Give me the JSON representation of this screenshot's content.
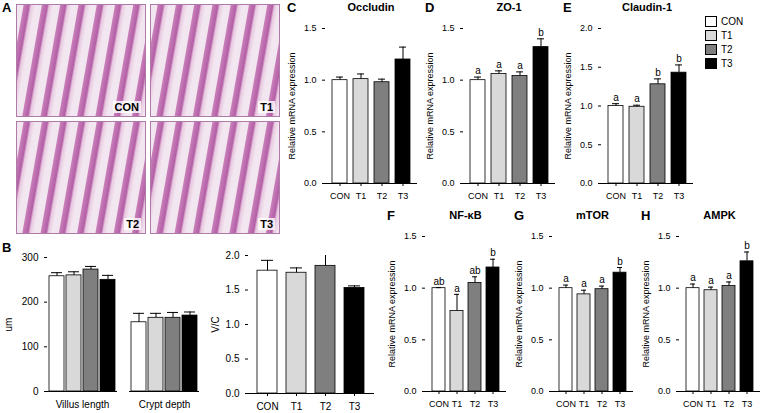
{
  "image_panel": {
    "panel": "A",
    "labels": [
      "CON",
      "T1",
      "T2",
      "T3"
    ]
  },
  "chart_data": [
    {
      "panel": "B",
      "type": "bar",
      "categories": [
        "Villus length",
        "Crypt depth"
      ],
      "series": [
        {
          "name": "CON",
          "color": "#ffffff",
          "values": [
            258,
            155
          ],
          "errors": [
            8,
            20
          ]
        },
        {
          "name": "T1",
          "color": "#d9d9d9",
          "values": [
            260,
            165
          ],
          "errors": [
            8,
            10
          ]
        },
        {
          "name": "T2",
          "color": "#7f7f7f",
          "values": [
            273,
            165
          ],
          "errors": [
            7,
            12
          ]
        },
        {
          "name": "T3",
          "color": "#000000",
          "values": [
            250,
            170
          ],
          "errors": [
            10,
            8
          ]
        }
      ],
      "ylabel": "um",
      "ylim": [
        0,
        300
      ],
      "yticks": [
        0,
        100,
        200,
        300
      ]
    },
    {
      "panel": "B",
      "type": "bar",
      "categories": [
        "CON",
        "T1",
        "T2",
        "T3"
      ],
      "values": [
        1.78,
        1.75,
        1.85,
        1.53
      ],
      "errors": [
        0.15,
        0.07,
        0.2,
        0.03
      ],
      "colors": [
        "#ffffff",
        "#d9d9d9",
        "#7f7f7f",
        "#000000"
      ],
      "ylabel": "V/C",
      "ylim": [
        0,
        2
      ],
      "yticks": [
        {
          "value": 0,
          "label": "0.0"
        },
        {
          "value": 0.5,
          "label": "0.5"
        },
        {
          "value": 1,
          "label": "1.0"
        },
        {
          "value": 1.5,
          "label": "1.5"
        },
        {
          "value": 2,
          "label": "2.0"
        }
      ]
    },
    {
      "panel": "C",
      "type": "bar",
      "title": "Occludin",
      "categories": [
        "CON",
        "T1",
        "T2",
        "T3"
      ],
      "values": [
        1.0,
        1.01,
        0.98,
        1.2
      ],
      "errors": [
        0.03,
        0.05,
        0.03,
        0.12
      ],
      "colors": [
        "#ffffff",
        "#d9d9d9",
        "#7f7f7f",
        "#000000"
      ],
      "ylabel": "Relative mRNA expression",
      "ylim": [
        0,
        1.5
      ],
      "yticks": [
        {
          "value": 0,
          "label": "0.0"
        },
        {
          "value": 0.5,
          "label": "0.5"
        },
        {
          "value": 1,
          "label": "1.0"
        },
        {
          "value": 1.5,
          "label": "1.5"
        }
      ]
    },
    {
      "panel": "D",
      "type": "bar",
      "title": "ZO-1",
      "categories": [
        "CON",
        "T1",
        "T2",
        "T3"
      ],
      "values": [
        1.0,
        1.06,
        1.04,
        1.32
      ],
      "errors": [
        0.03,
        0.03,
        0.04,
        0.08
      ],
      "letters": [
        "a",
        "a",
        "a",
        "b"
      ],
      "colors": [
        "#ffffff",
        "#d9d9d9",
        "#7f7f7f",
        "#000000"
      ],
      "ylabel": "Relative mRNA expression",
      "ylim": [
        0,
        1.5
      ],
      "yticks": [
        {
          "value": 0,
          "label": "0.0"
        },
        {
          "value": 0.5,
          "label": "0.5"
        },
        {
          "value": 1,
          "label": "1.0"
        },
        {
          "value": 1.5,
          "label": "1.5"
        }
      ]
    },
    {
      "panel": "E",
      "type": "bar",
      "title": "Claudin-1",
      "categories": [
        "CON",
        "T1",
        "T2",
        "T3"
      ],
      "values": [
        1.0,
        0.99,
        1.28,
        1.43
      ],
      "errors": [
        0.03,
        0.02,
        0.07,
        0.1
      ],
      "letters": [
        "a",
        "a",
        "b",
        "b"
      ],
      "colors": [
        "#ffffff",
        "#d9d9d9",
        "#7f7f7f",
        "#000000"
      ],
      "ylabel": "Relative mRNA expression",
      "ylim": [
        0,
        2
      ],
      "yticks": [
        {
          "value": 0,
          "label": "0.0"
        },
        {
          "value": 0.5,
          "label": "0.5"
        },
        {
          "value": 1,
          "label": "1.0"
        },
        {
          "value": 1.5,
          "label": "1.5"
        },
        {
          "value": 2,
          "label": "2.0"
        }
      ],
      "legend": "upper right"
    },
    {
      "panel": "F",
      "type": "bar",
      "title": "NF-κB",
      "categories": [
        "CON",
        "T1",
        "T2",
        "T3"
      ],
      "values": [
        1.0,
        0.78,
        1.05,
        1.2
      ],
      "errors": [
        0.005,
        0.16,
        0.06,
        0.08
      ],
      "letters": [
        "ab",
        "a",
        "ab",
        "b"
      ],
      "colors": [
        "#ffffff",
        "#d9d9d9",
        "#7f7f7f",
        "#000000"
      ],
      "ylabel": "Relative mRNA expression",
      "ylim": [
        0,
        1.5
      ],
      "yticks": [
        {
          "value": 0,
          "label": "0.0"
        },
        {
          "value": 0.5,
          "label": "0.5"
        },
        {
          "value": 1,
          "label": "1.0"
        },
        {
          "value": 1.5,
          "label": "1.5"
        }
      ]
    },
    {
      "panel": "G",
      "type": "bar",
      "title": "mTOR",
      "categories": [
        "CON",
        "T1",
        "T2",
        "T3"
      ],
      "values": [
        1.0,
        0.94,
        0.99,
        1.15
      ],
      "errors": [
        0.03,
        0.04,
        0.03,
        0.05
      ],
      "letters": [
        "a",
        "a",
        "a",
        "b"
      ],
      "colors": [
        "#ffffff",
        "#d9d9d9",
        "#7f7f7f",
        "#000000"
      ],
      "ylabel": "Relative mRNA expression",
      "ylim": [
        0,
        1.5
      ],
      "yticks": [
        {
          "value": 0,
          "label": "0.0"
        },
        {
          "value": 0.5,
          "label": "0.5"
        },
        {
          "value": 1,
          "label": "1.0"
        },
        {
          "value": 1.5,
          "label": "1.5"
        }
      ]
    },
    {
      "panel": "H",
      "type": "bar",
      "title": "AMPK",
      "categories": [
        "CON",
        "T1",
        "T2",
        "T3"
      ],
      "values": [
        1.0,
        0.98,
        1.02,
        1.26
      ],
      "errors": [
        0.04,
        0.03,
        0.04,
        0.09
      ],
      "letters": [
        "a",
        "a",
        "a",
        "b"
      ],
      "colors": [
        "#ffffff",
        "#d9d9d9",
        "#7f7f7f",
        "#000000"
      ],
      "ylabel": "Relative mRNA expression",
      "ylim": [
        0,
        1.5
      ],
      "yticks": [
        {
          "value": 0,
          "label": "0.0"
        },
        {
          "value": 0.5,
          "label": "0.5"
        },
        {
          "value": 1,
          "label": "1.0"
        },
        {
          "value": 1.5,
          "label": "1.5"
        }
      ]
    }
  ]
}
